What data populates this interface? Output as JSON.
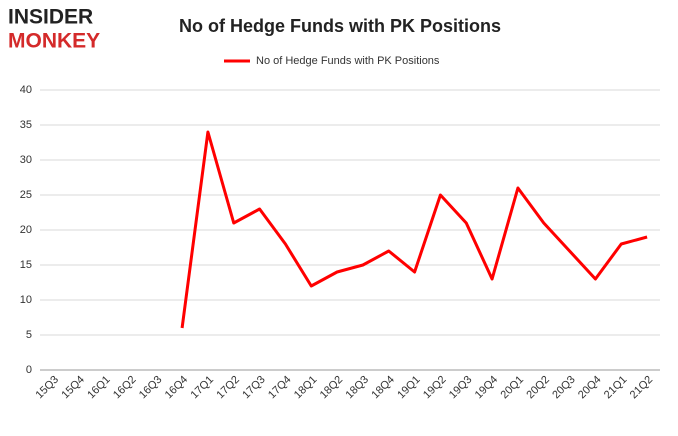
{
  "logo": [
    "INSIDER",
    "MONKEY"
  ],
  "chart_data": {
    "type": "line",
    "title": "No of Hedge Funds with PK Positions",
    "categories": [
      "15Q3",
      "15Q4",
      "16Q1",
      "16Q2",
      "16Q3",
      "16Q4",
      "17Q1",
      "17Q2",
      "17Q3",
      "17Q4",
      "18Q1",
      "18Q2",
      "18Q3",
      "18Q4",
      "19Q1",
      "19Q2",
      "19Q3",
      "19Q4",
      "20Q1",
      "20Q2",
      "20Q3",
      "20Q4",
      "21Q1",
      "21Q2"
    ],
    "series": [
      {
        "name": "No of Hedge Funds with PK Positions",
        "color": "#ff0000",
        "values": [
          null,
          null,
          null,
          null,
          null,
          6,
          34,
          21,
          23,
          18,
          12,
          14,
          15,
          17,
          14,
          25,
          21,
          13,
          26,
          21,
          17,
          13,
          18,
          19
        ]
      }
    ],
    "ylim": [
      0,
      40
    ],
    "yticks": [
      0,
      5,
      10,
      15,
      20,
      25,
      30,
      35,
      40
    ],
    "grid": true,
    "legend": "top"
  }
}
